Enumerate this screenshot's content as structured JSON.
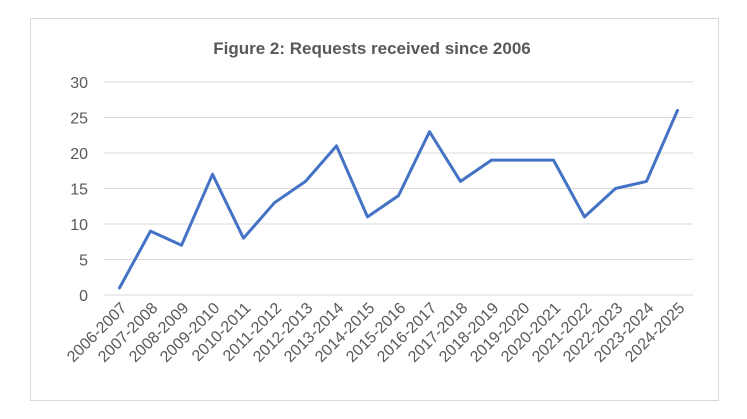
{
  "chart_data": {
    "type": "line",
    "title": "Figure 2: Requests received since 2006",
    "xlabel": "",
    "ylabel": "",
    "categories": [
      "2006-2007",
      "2007-2008",
      "2008-2009",
      "2009-2010",
      "2010-2011",
      "2011-2012",
      "2012-2013",
      "2013-2014",
      "2014-2015",
      "2015-2016",
      "2016-2017",
      "2017-2018",
      "2018-2019",
      "2019-2020",
      "2020-2021",
      "2021-2022",
      "2022-2023",
      "2023-2024",
      "2024-2025"
    ],
    "series": [
      {
        "values": [
          1,
          9,
          7,
          17,
          8,
          13,
          16,
          21,
          11,
          14,
          23,
          16,
          19,
          19,
          19,
          11,
          15,
          16,
          26
        ]
      }
    ],
    "ylim": [
      0,
      30
    ],
    "yticks": [
      0,
      5,
      10,
      15,
      20,
      25,
      30
    ],
    "grid": true,
    "legend": "none",
    "colors": {
      "series": "#4472c4",
      "grid": "#d9d9d9",
      "text": "#595959"
    }
  }
}
